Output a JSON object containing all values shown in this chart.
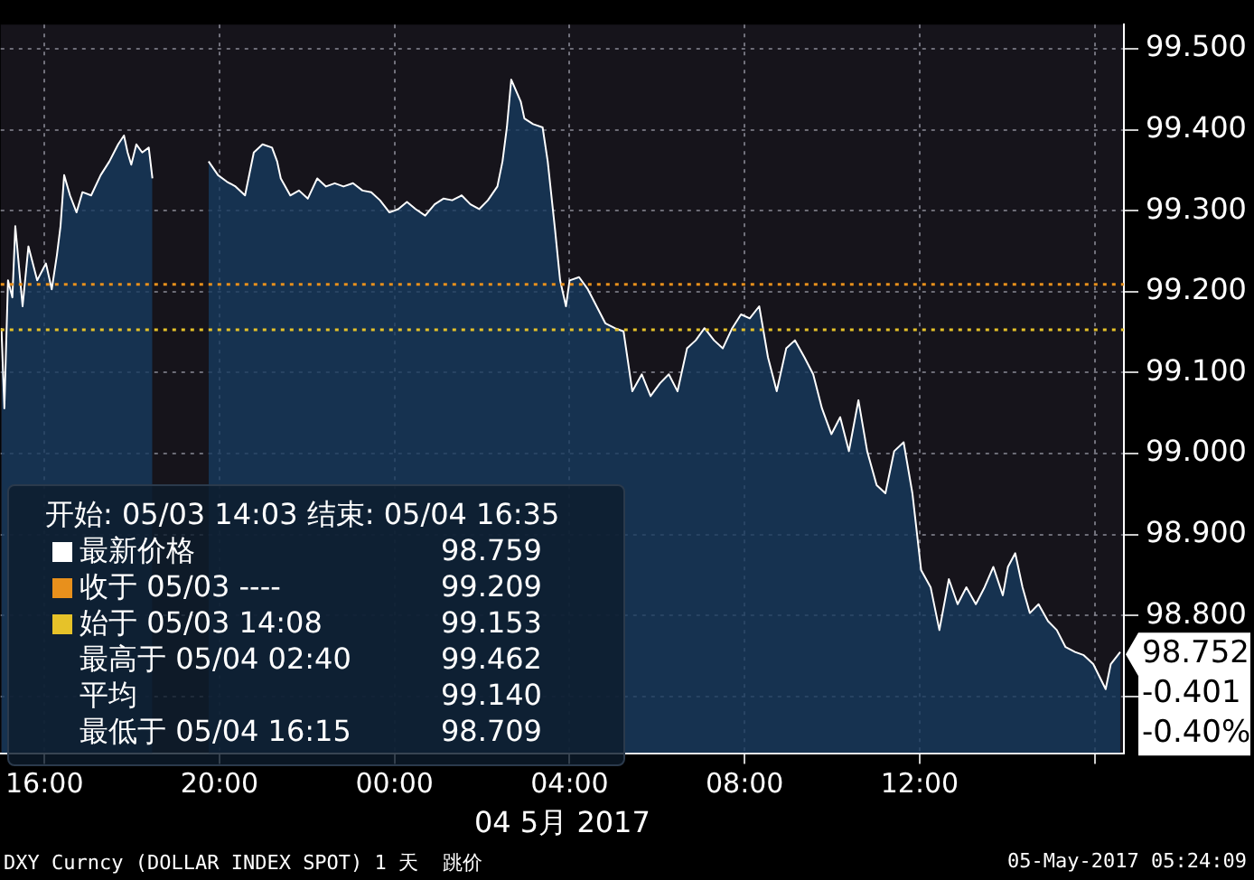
{
  "chart_data": {
    "type": "area",
    "xlabel": "04 5月 2017",
    "x": [
      "2017-05-03T15:01",
      "2017-05-03T15:05",
      "2017-05-03T15:10",
      "2017-05-03T15:16",
      "2017-05-03T15:20",
      "2017-05-03T15:30",
      "2017-05-03T15:38",
      "2017-05-03T15:50",
      "2017-05-03T16:02",
      "2017-05-03T16:10",
      "2017-05-03T16:17",
      "2017-05-03T16:22",
      "2017-05-03T16:27",
      "2017-05-03T16:35",
      "2017-05-03T16:44",
      "2017-05-03T16:52",
      "2017-05-03T17:04",
      "2017-05-03T17:17",
      "2017-05-03T17:29",
      "2017-05-03T17:41",
      "2017-05-03T17:49",
      "2017-05-03T17:54",
      "2017-05-03T17:59",
      "2017-05-03T18:06",
      "2017-05-03T18:14",
      "2017-05-03T18:23",
      "2017-05-03T18:28",
      "2017-05-03T19:00",
      "2017-05-03T19:45",
      "2017-05-03T19:58",
      "2017-05-03T20:10",
      "2017-05-03T20:22",
      "2017-05-03T20:35",
      "2017-05-03T20:47",
      "2017-05-03T20:59",
      "2017-05-03T21:12",
      "2017-05-03T21:19",
      "2017-05-03T21:24",
      "2017-05-03T21:37",
      "2017-05-03T21:49",
      "2017-05-03T22:01",
      "2017-05-03T22:14",
      "2017-05-03T22:26",
      "2017-05-03T22:38",
      "2017-05-03T22:50",
      "2017-05-03T23:03",
      "2017-05-03T23:16",
      "2017-05-03T23:28",
      "2017-05-03T23:40",
      "2017-05-03T23:53",
      "2017-05-04T00:05",
      "2017-05-04T00:17",
      "2017-05-04T00:29",
      "2017-05-04T00:42",
      "2017-05-04T00:55",
      "2017-05-04T01:07",
      "2017-05-04T01:19",
      "2017-05-04T01:32",
      "2017-05-04T01:44",
      "2017-05-04T01:56",
      "2017-05-04T02:08",
      "2017-05-04T02:21",
      "2017-05-04T02:28",
      "2017-05-04T02:34",
      "2017-05-04T02:40",
      "2017-05-04T02:53",
      "2017-05-04T02:58",
      "2017-05-04T03:10",
      "2017-05-04T03:23",
      "2017-05-04T03:30",
      "2017-05-04T03:40",
      "2017-05-04T03:47",
      "2017-05-04T03:55",
      "2017-05-04T04:00",
      "2017-05-04T04:13",
      "2017-05-04T04:25",
      "2017-05-04T04:37",
      "2017-05-04T04:49",
      "2017-05-04T05:02",
      "2017-05-04T05:14",
      "2017-05-04T05:26",
      "2017-05-04T05:39",
      "2017-05-04T05:51",
      "2017-05-04T06:04",
      "2017-05-04T06:16",
      "2017-05-04T06:28",
      "2017-05-04T06:41",
      "2017-05-04T06:53",
      "2017-05-04T07:05",
      "2017-05-04T07:18",
      "2017-05-04T07:30",
      "2017-05-04T07:43",
      "2017-05-04T07:55",
      "2017-05-04T08:07",
      "2017-05-04T08:20",
      "2017-05-04T08:32",
      "2017-05-04T08:44",
      "2017-05-04T08:57",
      "2017-05-04T09:09",
      "2017-05-04T09:22",
      "2017-05-04T09:34",
      "2017-05-04T09:46",
      "2017-05-04T09:59",
      "2017-05-04T10:11",
      "2017-05-04T10:23",
      "2017-05-04T10:36",
      "2017-05-04T10:48",
      "2017-05-04T11:01",
      "2017-05-04T11:13",
      "2017-05-04T11:25",
      "2017-05-04T11:38",
      "2017-05-04T11:50",
      "2017-05-04T12:02",
      "2017-05-04T12:15",
      "2017-05-04T12:27",
      "2017-05-04T12:40",
      "2017-05-04T12:52",
      "2017-05-04T13:04",
      "2017-05-04T13:17",
      "2017-05-04T13:29",
      "2017-05-04T13:41",
      "2017-05-04T13:54",
      "2017-05-04T14:01",
      "2017-05-04T14:11",
      "2017-05-04T14:21",
      "2017-05-04T14:31",
      "2017-05-04T14:43",
      "2017-05-04T14:56",
      "2017-05-04T15:08",
      "2017-05-04T15:20",
      "2017-05-04T15:33",
      "2017-05-04T15:45",
      "2017-05-04T15:58",
      "2017-05-04T16:15",
      "2017-05-04T16:22",
      "2017-05-04T16:35"
    ],
    "series": [
      {
        "color": "#ffffff",
        "values": [
          99.155,
          99.056,
          99.214,
          99.193,
          99.281,
          99.182,
          99.256,
          99.214,
          99.235,
          99.203,
          99.245,
          99.281,
          99.344,
          99.319,
          99.298,
          99.323,
          99.319,
          99.344,
          99.361,
          99.382,
          99.393,
          99.372,
          99.357,
          99.382,
          99.372,
          99.378,
          99.34,
          null,
          99.361,
          99.344,
          99.336,
          99.33,
          99.319,
          99.372,
          99.382,
          99.378,
          99.361,
          99.34,
          99.319,
          99.325,
          99.315,
          99.34,
          99.33,
          99.334,
          99.33,
          99.334,
          99.325,
          99.323,
          99.313,
          99.298,
          99.302,
          99.311,
          99.302,
          99.294,
          99.308,
          99.315,
          99.313,
          99.319,
          99.308,
          99.302,
          99.313,
          99.33,
          99.361,
          99.403,
          99.462,
          99.435,
          99.414,
          99.407,
          99.403,
          99.361,
          99.277,
          99.214,
          99.182,
          99.214,
          99.218,
          99.203,
          99.182,
          99.161,
          99.155,
          99.151,
          99.077,
          99.098,
          99.071,
          99.087,
          99.098,
          99.077,
          99.13,
          99.14,
          99.155,
          99.14,
          99.13,
          99.155,
          99.172,
          99.167,
          99.182,
          99.119,
          99.077,
          99.13,
          99.14,
          99.119,
          99.098,
          99.056,
          99.024,
          99.045,
          99.003,
          99.066,
          99.003,
          98.961,
          98.951,
          99.003,
          99.014,
          98.951,
          98.856,
          98.835,
          98.782,
          98.845,
          98.814,
          98.835,
          98.814,
          98.835,
          98.86,
          98.825,
          98.86,
          98.877,
          98.835,
          98.803,
          98.814,
          98.793,
          98.782,
          98.761,
          98.755,
          98.751,
          98.74,
          98.709,
          98.74,
          98.755
        ]
      }
    ],
    "xlim": [
      "2017-05-03T15:00",
      "2017-05-04T16:40"
    ],
    "ylim": [
      98.63,
      99.53
    ],
    "xticks": [
      {
        "value": "2017-05-03T16:00",
        "label": "16:00"
      },
      {
        "value": "2017-05-03T20:00",
        "label": "20:00"
      },
      {
        "value": "2017-05-04T00:00",
        "label": "00:00"
      },
      {
        "value": "2017-05-04T04:00",
        "label": "04:00"
      },
      {
        "value": "2017-05-04T08:00",
        "label": "08:00"
      },
      {
        "value": "2017-05-04T12:00",
        "label": "12:00"
      },
      {
        "value": "2017-05-04T16:00",
        "label": null
      }
    ],
    "yticks": [
      {
        "value": 98.7,
        "label": null
      },
      {
        "value": 98.8,
        "label": "98.800"
      },
      {
        "value": 98.9,
        "label": "98.900"
      },
      {
        "value": 99.0,
        "label": "99.000"
      },
      {
        "value": 99.1,
        "label": "99.100"
      },
      {
        "value": 99.2,
        "label": "99.200"
      },
      {
        "value": 99.3,
        "label": "99.300"
      },
      {
        "value": 99.4,
        "label": "99.400"
      },
      {
        "value": 99.5,
        "label": "99.500"
      }
    ],
    "grid": true,
    "legend": false,
    "ref_lines": [
      {
        "axis": "y",
        "value": 99.209,
        "color": "#e8901c",
        "line_style": "dotted"
      },
      {
        "axis": "y",
        "value": 99.153,
        "color": "#e6c229",
        "line_style": "dotted"
      }
    ],
    "annotations": [
      "开始: 05/03 14:03 结束: 05/04 16:35",
      "最新价格 98.759",
      "收于 05/03 ---- 99.209",
      "始于 05/03 14:08 99.153",
      "最高于 05/04 02:40 99.462",
      "平均 99.140",
      "最低于 05/04 16:15 98.709",
      {
        "text": "98.752",
        "x": "2017-05-04T16:35",
        "y": 98.752
      },
      "-0.401",
      "-0.40%",
      "DXY Curncy (DOLLAR INDEX SPOT) 1 天  跳价",
      "05-May-2017 05:24:09"
    ]
  }
}
